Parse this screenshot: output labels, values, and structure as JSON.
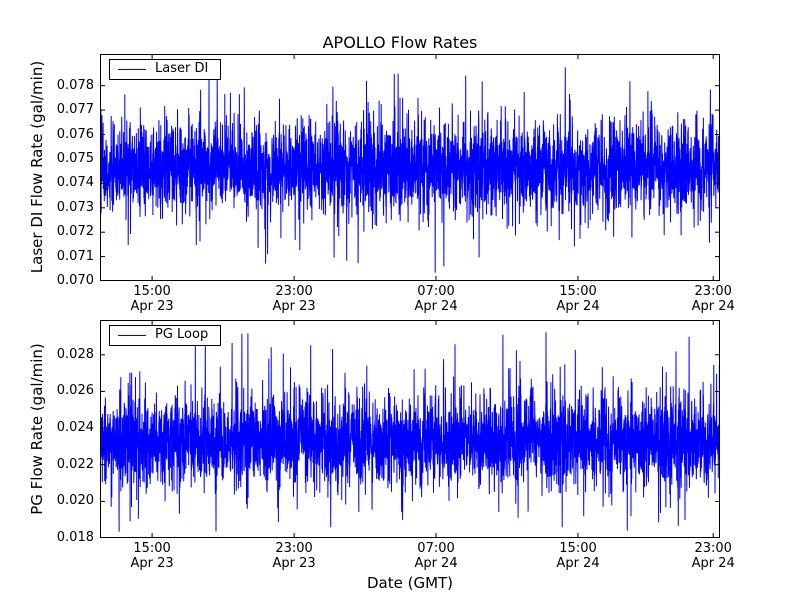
{
  "colors": {
    "line": "#0000ff",
    "axis": "#000000",
    "background": "#ffffff"
  },
  "chart_data": {
    "type": "line",
    "title": "APOLLO Flow Rates",
    "xlabel": "Date (GMT)",
    "legend_position": "upper left",
    "grid": false,
    "seed": 42,
    "x_ticks": [
      {
        "time": "15:00",
        "date": "Apr 23",
        "frac": 0.084
      },
      {
        "time": "23:00",
        "date": "Apr 23",
        "frac": 0.313
      },
      {
        "time": "07:00",
        "date": "Apr 24",
        "frac": 0.542
      },
      {
        "time": "15:00",
        "date": "Apr 24",
        "frac": 0.771
      },
      {
        "time": "23:00",
        "date": "Apr 24",
        "frac": 0.989
      }
    ],
    "charts": [
      {
        "name": "laser-di",
        "ylabel": "Laser DI Flow Rate (gal/min)",
        "legend": "Laser DI",
        "line_color": "#0000ff",
        "ylim": [
          0.07,
          0.0793
        ],
        "y_ticks": [
          0.07,
          0.071,
          0.072,
          0.073,
          0.074,
          0.075,
          0.076,
          0.077,
          0.078
        ],
        "y_tick_decimals": 3,
        "series_synth": {
          "n": 4000,
          "base": 0.0746,
          "sigma": 0.0009,
          "spike_up_p": 0.015,
          "spike_up_range": [
            0.0765,
            0.0789
          ],
          "spike_down_p": 0.012,
          "spike_down_range": [
            0.0703,
            0.0725
          ],
          "clip": [
            0.07,
            0.079
          ]
        }
      },
      {
        "name": "pg-loop",
        "ylabel": "PG Flow Rate (gal/min)",
        "legend": "PG Loop",
        "line_color": "#0000ff",
        "ylim": [
          0.018,
          0.0299
        ],
        "y_ticks": [
          0.018,
          0.02,
          0.022,
          0.024,
          0.026,
          0.028
        ],
        "y_tick_decimals": 3,
        "series_synth": {
          "n": 4000,
          "base": 0.0233,
          "sigma": 0.0012,
          "spike_up_p": 0.02,
          "spike_up_range": [
            0.0262,
            0.0293
          ],
          "spike_down_p": 0.012,
          "spike_down_range": [
            0.0183,
            0.0205
          ],
          "clip": [
            0.018,
            0.0295
          ]
        }
      }
    ]
  }
}
